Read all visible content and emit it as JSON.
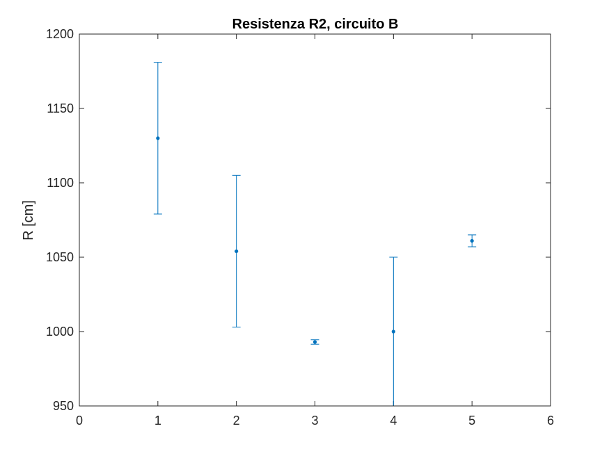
{
  "chart_data": {
    "type": "scatter",
    "title": "Resistenza R2, circuito B",
    "xlabel": "",
    "ylabel": "R [cm]",
    "xlim": [
      0,
      6
    ],
    "ylim": [
      950,
      1200
    ],
    "xticks": [
      0,
      1,
      2,
      3,
      4,
      5,
      6
    ],
    "yticks": [
      950,
      1000,
      1050,
      1100,
      1150,
      1200
    ],
    "grid": false,
    "error_bars": true,
    "series": [
      {
        "points": [
          {
            "x": 1,
            "y": 1130,
            "err": 51
          },
          {
            "x": 2,
            "y": 1054,
            "err": 51
          },
          {
            "x": 3,
            "y": 993,
            "err": 1.5
          },
          {
            "x": 4,
            "y": 1000,
            "err": 50
          },
          {
            "x": 5,
            "y": 1061,
            "err": 4
          }
        ]
      }
    ],
    "colors": {
      "series": "#0072bd",
      "axes": "#262626"
    }
  }
}
